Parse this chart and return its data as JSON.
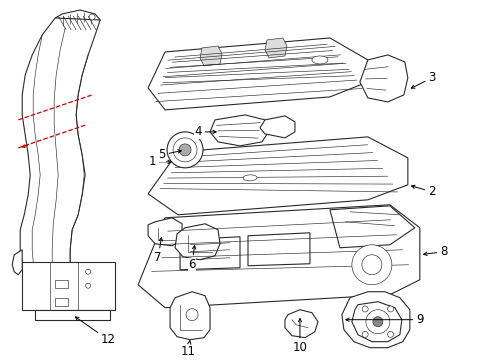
{
  "background_color": "#ffffff",
  "line_color": "#2a2a2a",
  "red_color": "#cc0000",
  "label_color": "#000000",
  "figsize": [
    4.89,
    3.6
  ],
  "dpi": 100,
  "font_size": 8.5,
  "lw_main": 0.8,
  "lw_thin": 0.45,
  "lw_thick": 1.1
}
